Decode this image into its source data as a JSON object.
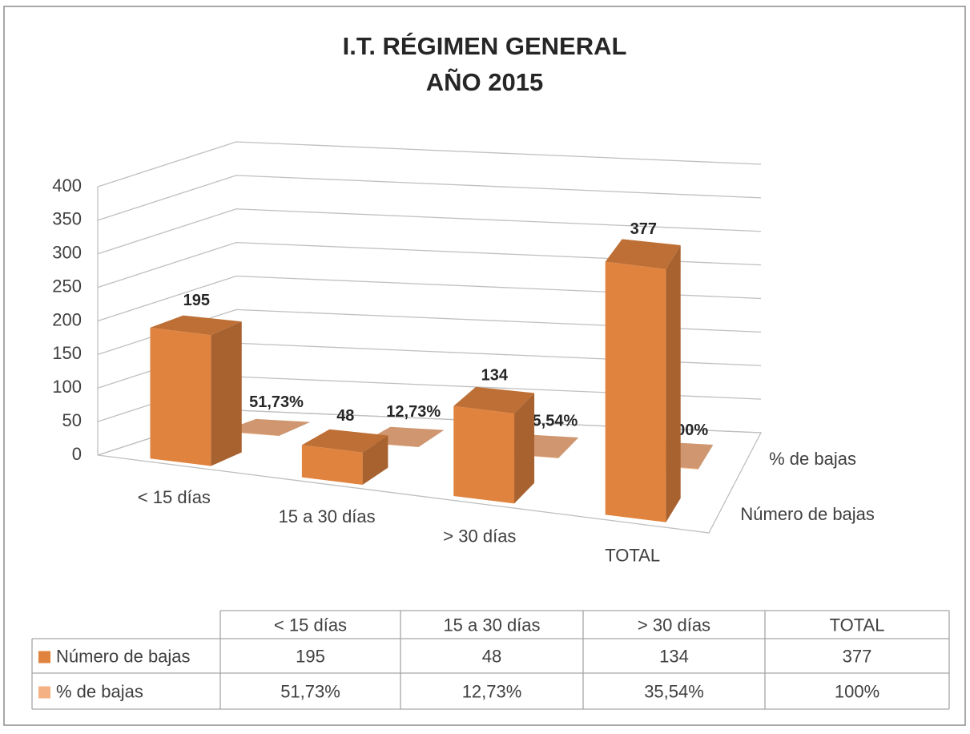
{
  "chart_data": {
    "type": "bar3d",
    "title": "I.T. RÉGIMEN GENERAL",
    "subtitle": "AÑO 2015",
    "categories": [
      "< 15 días",
      "15 a 30 días",
      "> 30 días",
      "TOTAL"
    ],
    "series": [
      {
        "name": "Número de bajas",
        "color": "#e0833e",
        "values": [
          195,
          48,
          134,
          377
        ]
      },
      {
        "name": "% de bajas",
        "color": "#f4b183",
        "values": [
          0.5173,
          0.1273,
          0.3554,
          1
        ],
        "value_labels": [
          "51,73%",
          "12,73%",
          "35,54%",
          "100%"
        ]
      }
    ],
    "ylim": [
      0,
      400
    ],
    "yticks": [
      0,
      50,
      100,
      150,
      200,
      250,
      300,
      350,
      400
    ],
    "grid": true,
    "data_table": true
  }
}
